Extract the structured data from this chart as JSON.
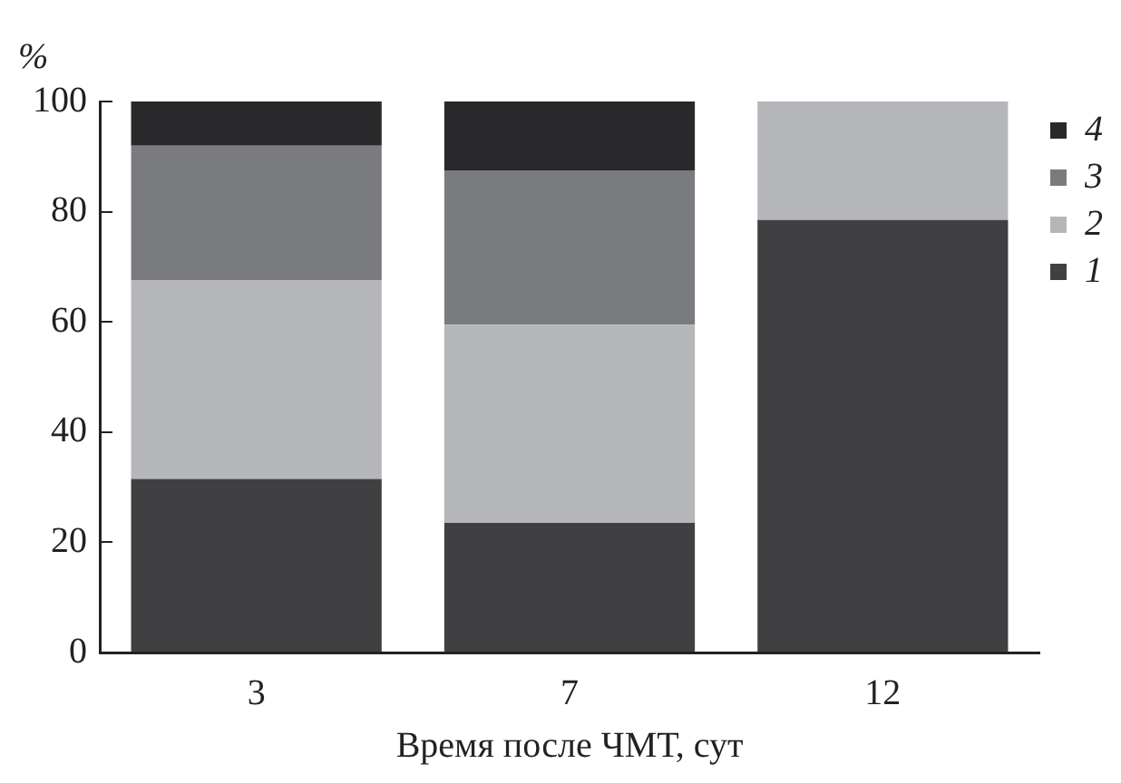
{
  "chart_data": {
    "type": "bar",
    "stacked": true,
    "ylabel": "%",
    "xlabel": "Время после ЧМТ, сут",
    "categories": [
      "3",
      "7",
      "12"
    ],
    "series": [
      {
        "name": "1",
        "color": "#404043",
        "values": [
          31.5,
          23.5,
          78.5
        ]
      },
      {
        "name": "2",
        "color": "#b5b6b9",
        "values": [
          36,
          36,
          21.5
        ]
      },
      {
        "name": "3",
        "color": "#7a7b7f",
        "values": [
          24.5,
          28,
          0
        ]
      },
      {
        "name": "4",
        "color": "#29282a",
        "values": [
          8,
          12.5,
          0
        ]
      }
    ],
    "ylim": [
      0,
      100
    ],
    "yticks": [
      0,
      20,
      40,
      60,
      80,
      100
    ],
    "grid": false,
    "legend": "top right"
  }
}
